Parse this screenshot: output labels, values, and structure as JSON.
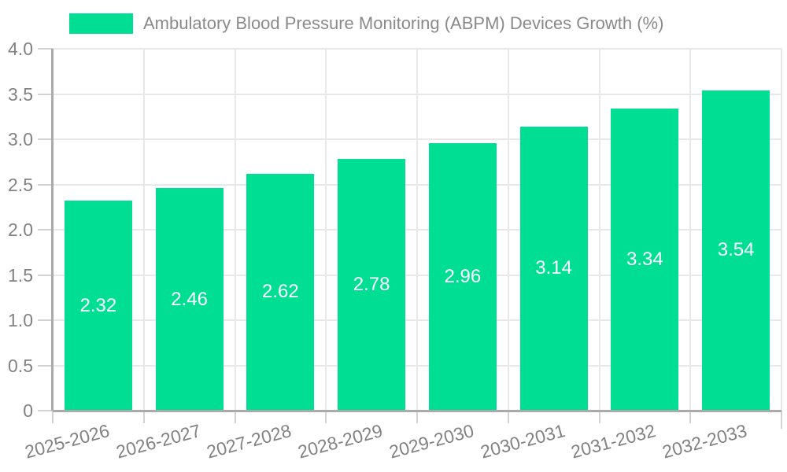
{
  "chart_data": {
    "type": "bar",
    "title": "Ambulatory Blood Pressure Monitoring (ABPM) Devices Growth (%)",
    "categories": [
      "2025-2026",
      "2026-2027",
      "2027-2028",
      "2028-2029",
      "2029-2030",
      "2030-2031",
      "2031-2032",
      "2032-2033"
    ],
    "values": [
      2.32,
      2.46,
      2.62,
      2.78,
      2.96,
      3.14,
      3.34,
      3.54
    ],
    "value_labels": [
      "2.32",
      "2.46",
      "2.62",
      "2.78",
      "2.96",
      "3.14",
      "3.34",
      "3.54"
    ],
    "xlabel": "",
    "ylabel": "",
    "ylim": [
      0,
      4.0
    ],
    "ytick_step": 0.5,
    "ytick_labels": [
      "0",
      "0.5",
      "1.0",
      "1.5",
      "2.0",
      "2.5",
      "3.0",
      "3.5",
      "4.0"
    ],
    "grid": "horizontal and vertical gridlines on",
    "legend_position": "top-left",
    "colors": {
      "bar": "#00de93",
      "grid": "#e8e8e8",
      "axis": "#aaaaaa",
      "tick": "#d2d2d2",
      "tick_label": "#828282",
      "legend_text": "#8a8a8a",
      "value_label": "#ffffff",
      "background": "#ffffff"
    }
  }
}
